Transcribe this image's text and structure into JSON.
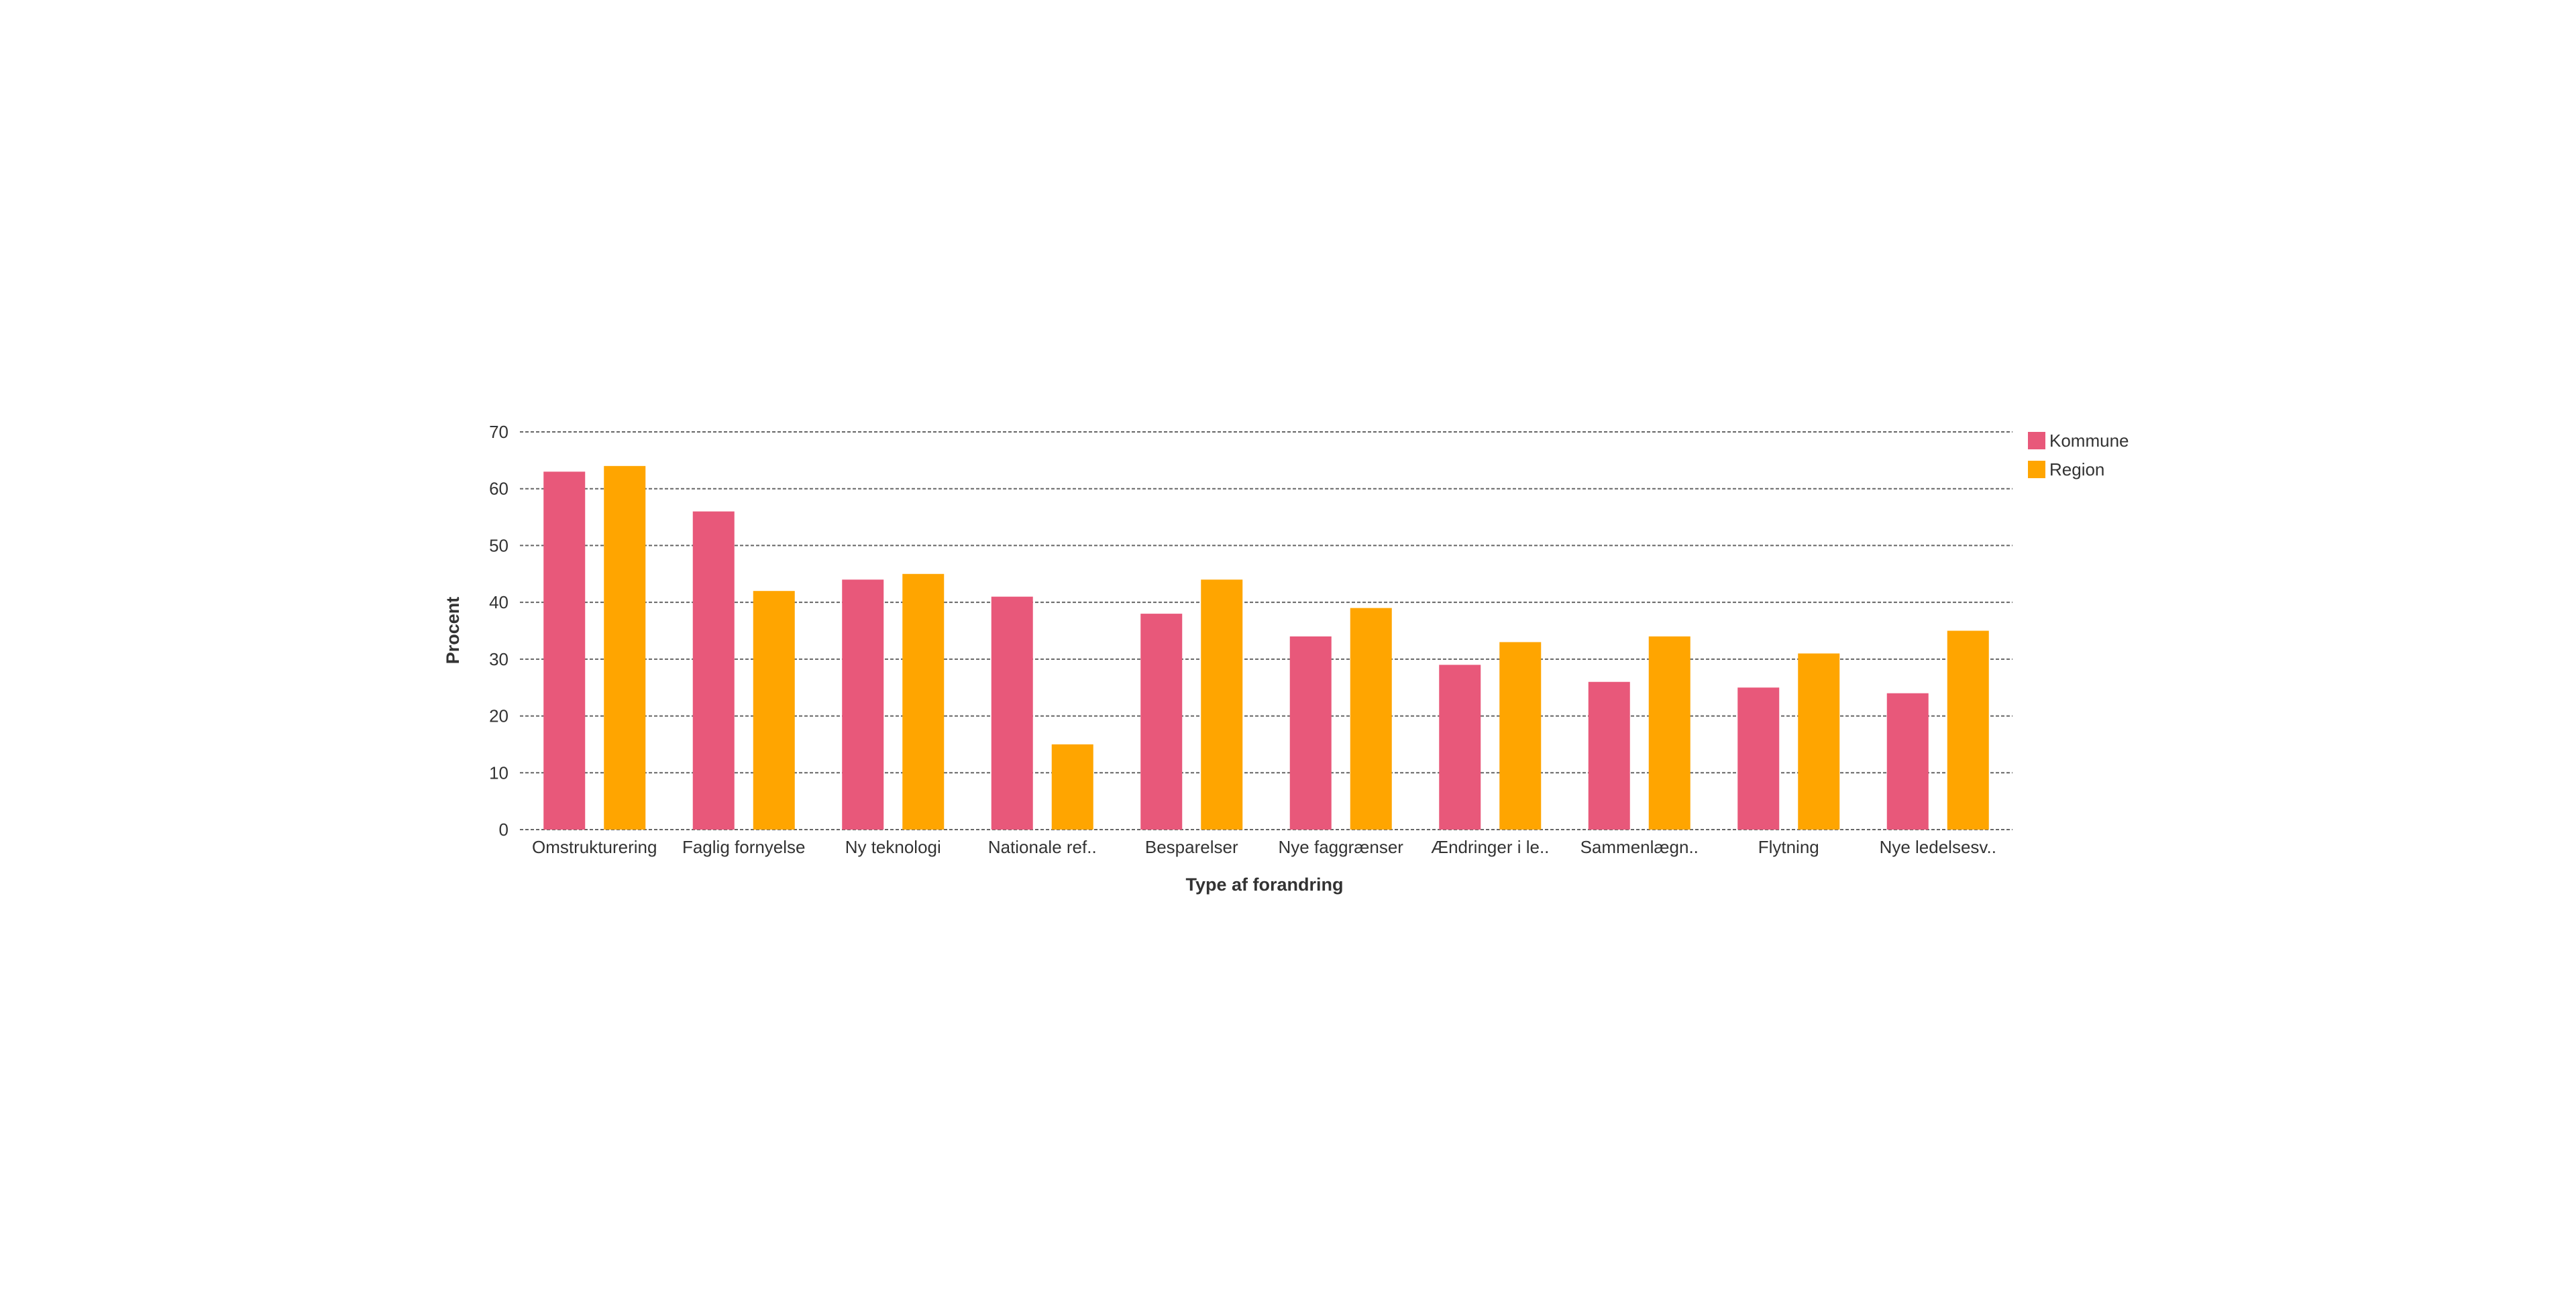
{
  "chart_data": {
    "type": "bar",
    "title": "",
    "xlabel": "Type af forandring",
    "ylabel": "Procent",
    "ylim": [
      0,
      70
    ],
    "yticks": [
      0,
      10,
      20,
      30,
      40,
      50,
      60,
      70
    ],
    "grid": true,
    "legend_position": "right",
    "categories": [
      "Omstrukturering",
      "Faglig fornyelse",
      "Ny teknologi",
      "Nationale ref..",
      "Besparelser",
      "Nye faggrænser",
      "Ændringer i le..",
      "Sammenlægn..",
      "Flytning",
      "Nye ledelsesv.."
    ],
    "series": [
      {
        "name": "Kommune",
        "color": "#E8587A",
        "values": [
          63,
          56,
          44,
          41,
          38,
          34,
          29,
          26,
          25,
          24
        ]
      },
      {
        "name": "Region",
        "color": "#FFA500",
        "values": [
          64,
          42,
          45,
          15,
          44,
          39,
          33,
          34,
          31,
          35
        ]
      }
    ]
  }
}
